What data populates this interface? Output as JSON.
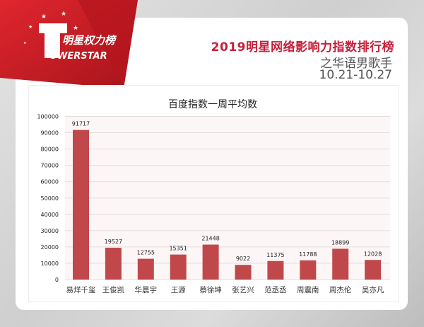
{
  "logo": {
    "cn": "明星权力榜",
    "en": "OWERSTAR",
    "brand_color": "#d0202a"
  },
  "header": {
    "title": "2019明星网络影响力指数排行榜",
    "subtitle": "之华语男歌手",
    "dates": "10.21-10.27"
  },
  "chart_data": {
    "type": "bar",
    "title": "百度指数一周平均数",
    "categories": [
      "易烊千玺",
      "王俊凯",
      "华晨宇",
      "王源",
      "蔡徐坤",
      "张艺兴",
      "范丞丞",
      "周震南",
      "周杰伦",
      "吴亦凡"
    ],
    "values": [
      91717,
      19527,
      12755,
      15351,
      21448,
      9022,
      11375,
      11788,
      18899,
      12028
    ],
    "ylim": [
      0,
      100000
    ],
    "yticks": [
      0,
      10000,
      20000,
      30000,
      40000,
      50000,
      60000,
      70000,
      80000,
      90000,
      100000
    ],
    "grid": true,
    "bar_color": "#c0484b",
    "data_labels": true
  }
}
